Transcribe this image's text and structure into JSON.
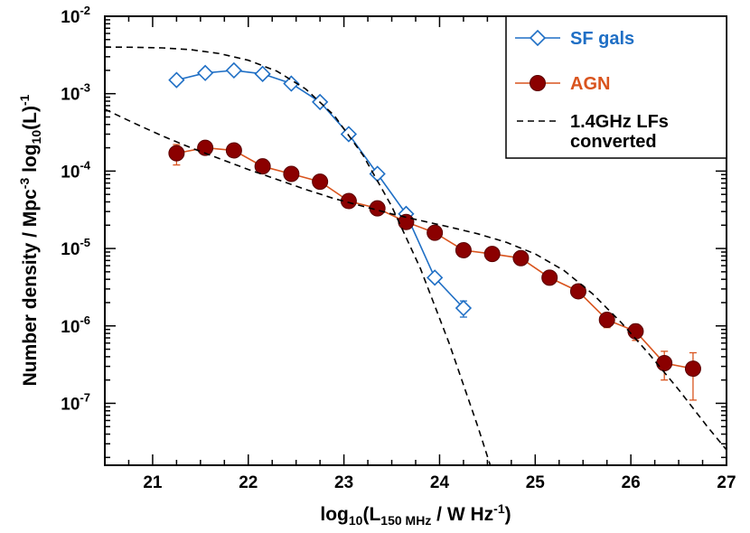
{
  "chart_data": {
    "type": "scatter",
    "title": "",
    "xlabel": "log10(L150 MHz / W Hz-1)",
    "xlabel_parts": {
      "pre": "log",
      "sub1": "10",
      "mid": "(L",
      "sub2": "150 MHz",
      "post": " / W Hz",
      "sup": "-1",
      "end": ")"
    },
    "ylabel": "Number density / Mpc-3 log10(L)-1",
    "ylabel_parts": {
      "pre": "Number density / Mpc",
      "sup1": "-3",
      "mid": " log",
      "sub": "10",
      "post": "(L)",
      "sup2": "-1"
    },
    "xlim": [
      20.5,
      27
    ],
    "ylim_log10": [
      -7.8,
      -2
    ],
    "y_scale": "log",
    "x_ticks": [
      "21",
      "22",
      "23",
      "24",
      "25",
      "26",
      "27"
    ],
    "x_tick_values": [
      21,
      22,
      23,
      24,
      25,
      26,
      27
    ],
    "y_ticks": [
      {
        "exp": -7,
        "base": "10",
        "sup": "-7"
      },
      {
        "exp": -6,
        "base": "10",
        "sup": "-6"
      },
      {
        "exp": -5,
        "base": "10",
        "sup": "-5"
      },
      {
        "exp": -4,
        "base": "10",
        "sup": "-4"
      },
      {
        "exp": -3,
        "base": "10",
        "sup": "-3"
      },
      {
        "exp": -2,
        "base": "10",
        "sup": "-2"
      }
    ],
    "legend": {
      "position": "top-right",
      "entries": [
        {
          "label": "SF gals",
          "color": "#1f6fc5",
          "marker": "diamond"
        },
        {
          "label": "AGN",
          "color": "#d9541e",
          "marker": "circle"
        },
        {
          "label": "1.4GHz LFs",
          "label2": "converted",
          "color": "#000000",
          "marker": "dashed"
        }
      ]
    },
    "series": [
      {
        "name": "SF gals",
        "color": "#1f6fc5",
        "marker": "diamond",
        "x": [
          21.25,
          21.55,
          21.85,
          22.15,
          22.45,
          22.75,
          23.05,
          23.35,
          23.65,
          23.95,
          24.25
        ],
        "y": [
          0.0015,
          0.00185,
          0.002,
          0.0018,
          0.00135,
          0.00078,
          0.0003,
          9.2e-05,
          2.8e-05,
          4.2e-06,
          1.7e-06
        ],
        "y_err_low": [
          0.00135,
          0.00175,
          0.0019,
          0.0017,
          0.00128,
          0.00073,
          0.00028,
          8.5e-05,
          2.5e-05,
          3.8e-06,
          1.3e-06
        ],
        "y_err_high": [
          0.00165,
          0.00195,
          0.0021,
          0.0019,
          0.00142,
          0.00083,
          0.00032,
          9.9e-05,
          3.1e-05,
          4.6e-06,
          2.1e-06
        ]
      },
      {
        "name": "AGN",
        "color": "#d9541e",
        "fill": "#8b0000",
        "marker": "circle",
        "x": [
          21.25,
          21.55,
          21.85,
          22.15,
          22.45,
          22.75,
          23.05,
          23.35,
          23.65,
          23.95,
          24.25,
          24.55,
          24.85,
          25.15,
          25.45,
          25.75,
          26.05,
          26.35,
          26.65
        ],
        "y": [
          0.00017,
          0.0002,
          0.000185,
          0.000115,
          9.2e-05,
          7.3e-05,
          4.1e-05,
          3.3e-05,
          2.2e-05,
          1.6e-05,
          9.5e-06,
          8.5e-06,
          7.5e-06,
          4.2e-06,
          2.8e-06,
          1.2e-06,
          8.5e-07,
          3.3e-07,
          2.8e-07
        ],
        "y_err_low": [
          0.00012,
          0.000185,
          0.00017,
          0.000105,
          8.5e-05,
          6.8e-05,
          3.8e-05,
          3e-05,
          2e-05,
          1.45e-05,
          8.7e-06,
          7.8e-06,
          6.8e-06,
          3.8e-06,
          2.5e-06,
          9.5e-07,
          6.5e-07,
          2e-07,
          1.1e-07
        ],
        "y_err_high": [
          0.00022,
          0.000215,
          0.0002,
          0.000125,
          9.9e-05,
          7.8e-05,
          4.4e-05,
          3.6e-05,
          2.4e-05,
          1.75e-05,
          1.03e-05,
          9.2e-06,
          8.2e-06,
          4.6e-06,
          3.1e-06,
          1.45e-06,
          1.05e-06,
          4.7e-07,
          4.5e-07
        ]
      },
      {
        "name": "1.4GHz LFs converted (SF)",
        "color": "#000000",
        "style": "dashed",
        "x": [
          20.5,
          20.8,
          21.1,
          21.4,
          21.7,
          22.0,
          22.3,
          22.6,
          22.9,
          23.2,
          23.5,
          23.8,
          24.1,
          24.4,
          24.7,
          24.85
        ],
        "y": [
          0.004,
          0.00398,
          0.0039,
          0.0037,
          0.0033,
          0.0027,
          0.00195,
          0.00115,
          0.00052,
          0.00016,
          3.5e-05,
          5.5e-06,
          6e-07,
          5e-08,
          3.5e-09,
          1e-09
        ]
      },
      {
        "name": "1.4GHz LFs converted (AGN)",
        "color": "#000000",
        "style": "dashed",
        "x": [
          20.5,
          20.8,
          21.1,
          21.4,
          21.7,
          22.0,
          22.3,
          22.6,
          22.9,
          23.2,
          23.5,
          23.8,
          24.1,
          24.4,
          24.7,
          25.0,
          25.3,
          25.6,
          25.9,
          26.2,
          26.5,
          26.8,
          27.0
        ],
        "y": [
          0.00063,
          0.00042,
          0.000285,
          0.0002,
          0.000145,
          0.000105,
          7.8e-05,
          5.8e-05,
          4.4e-05,
          3.5e-05,
          2.8e-05,
          2.3e-05,
          1.9e-05,
          1.55e-05,
          1.2e-05,
          8.5e-06,
          5.2e-06,
          2.6e-06,
          1.1e-06,
          4.2e-07,
          1.5e-07,
          5e-08,
          2.5e-08
        ]
      }
    ],
    "grid": false
  }
}
